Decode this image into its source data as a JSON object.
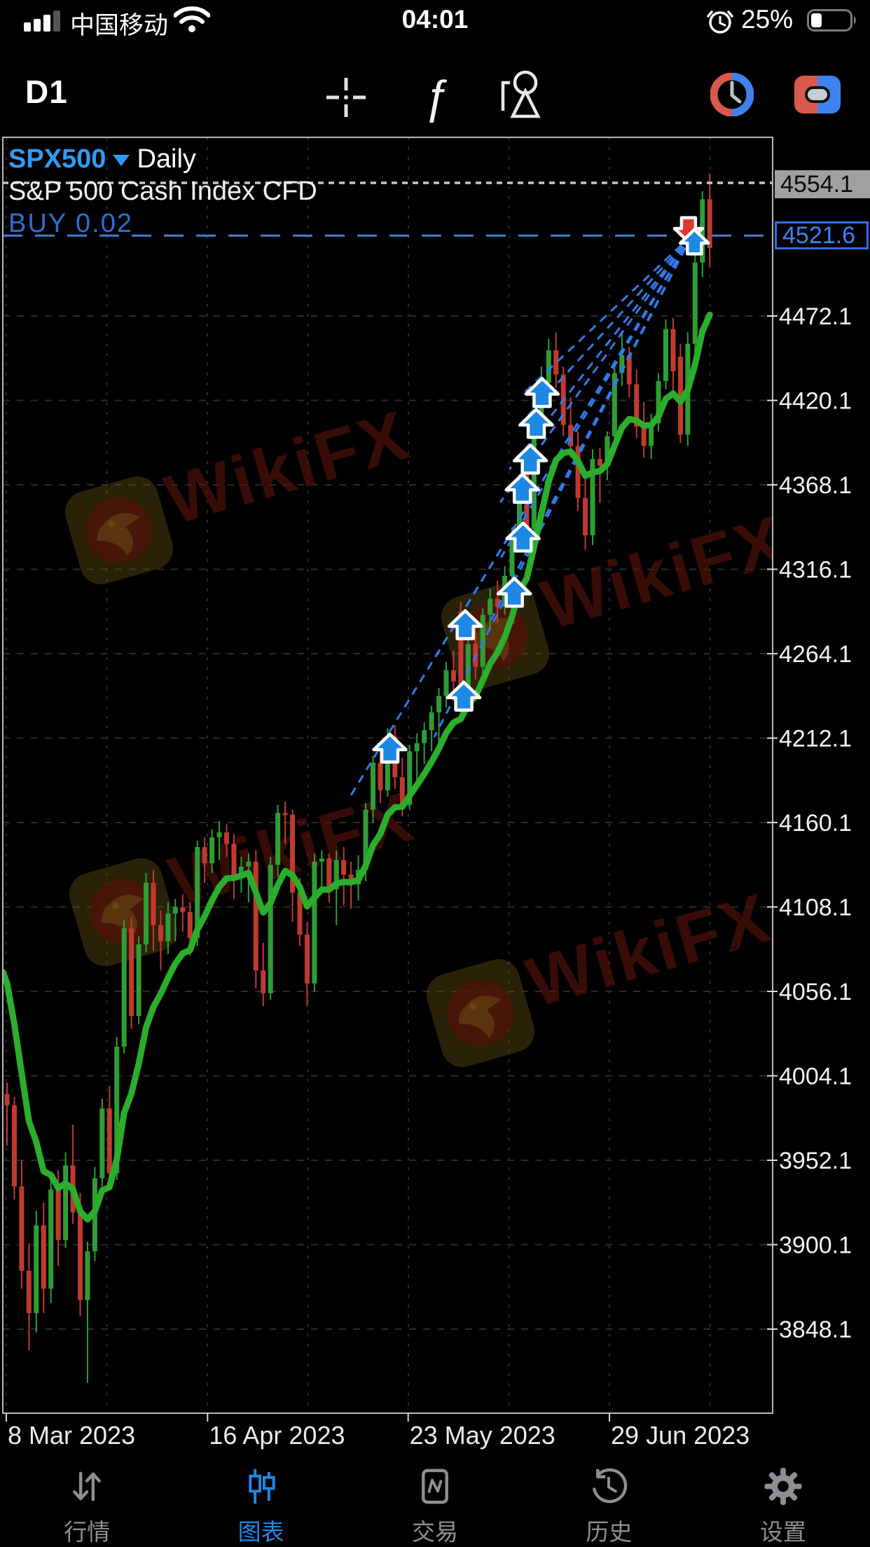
{
  "status_bar": {
    "carrier": "中国移动",
    "time": "04:01",
    "battery_percent": "25%"
  },
  "toolbar": {
    "timeframe": "D1"
  },
  "header": {
    "symbol": "SPX500",
    "timeframe_label": "Daily",
    "description": "S&P 500 Cash Index CFD",
    "position_label": "BUY 0.02"
  },
  "badges": {
    "ask_label": "4554.1",
    "position_price_label": "4521.6"
  },
  "axis": {
    "y_labels": [
      "4472.1",
      "4420.1",
      "4368.1",
      "4316.1",
      "4264.1",
      "4212.1",
      "4160.1",
      "4108.1",
      "4056.1",
      "4004.1",
      "3952.1",
      "3900.1",
      "3848.1"
    ],
    "x_labels": [
      "8 Mar 2023",
      "16 Apr 2023",
      "23 May 2023",
      "29 Jun 2023"
    ]
  },
  "watermark": {
    "text": "WikiFX"
  },
  "nav": {
    "items": [
      {
        "label": "行情",
        "active": false
      },
      {
        "label": "图表",
        "active": true
      },
      {
        "label": "交易",
        "active": false
      },
      {
        "label": "历史",
        "active": false
      },
      {
        "label": "设置",
        "active": false
      }
    ]
  },
  "colors": {
    "accent_blue": "#1e88e5",
    "symbol_blue": "#2f9bf6",
    "buy_text_blue": "#2b6fd6",
    "candle_up": "#2e9e33",
    "candle_down": "#c13a2e",
    "ma_green": "#2bae2b",
    "trendline_blue": "#2f7be8",
    "position_line_blue": "#3f7fd6",
    "ask_line_gray": "#c8c8c8",
    "grid_gray": "#2a2a2a",
    "nav_gray": "#8e8e93"
  },
  "chart_data": {
    "type": "candlestick",
    "symbol": "SPX500",
    "period": "Daily",
    "title": "S&P 500 Cash Index CFD",
    "ylim": [
      3796,
      4582
    ],
    "y_ticks": [
      4472.1,
      4420.1,
      4368.1,
      4316.1,
      4264.1,
      4212.1,
      4160.1,
      4108.1,
      4056.1,
      4004.1,
      3952.1,
      3900.1,
      3848.1
    ],
    "x_ticks": [
      {
        "bar": -0.1,
        "label": "8 Mar 2023"
      },
      {
        "bar": 27.4,
        "label": "16 Apr 2023"
      },
      {
        "bar": 54.8,
        "label": "23 May 2023"
      },
      {
        "bar": 82.3,
        "label": "29 Jun 2023"
      }
    ],
    "price_levels": {
      "ask": 4554.1,
      "position_buy": 4521.6
    },
    "ma": {
      "kind": "EMA",
      "period": 9,
      "seed": 4080
    },
    "candles_ohlc": [
      [
        3993,
        4000,
        3961,
        3986
      ],
      [
        3986,
        3991,
        3928,
        3936
      ],
      [
        3936,
        3952,
        3873,
        3884
      ],
      [
        3884,
        3901,
        3835,
        3858
      ],
      [
        3858,
        3921,
        3846,
        3912
      ],
      [
        3912,
        3926,
        3858,
        3873
      ],
      [
        3873,
        3941,
        3864,
        3934
      ],
      [
        3934,
        3946,
        3887,
        3903
      ],
      [
        3903,
        3957,
        3898,
        3949
      ],
      [
        3949,
        3974,
        3913,
        3920
      ],
      [
        3920,
        3932,
        3856,
        3866
      ],
      [
        3866,
        3902,
        3815,
        3896
      ],
      [
        3896,
        3948,
        3890,
        3941
      ],
      [
        3941,
        3990,
        3935,
        3984
      ],
      [
        3984,
        3998,
        3938,
        3944
      ],
      [
        3944,
        4028,
        3940,
        4022
      ],
      [
        4022,
        4100,
        4018,
        4095
      ],
      [
        4095,
        4102,
        4033,
        4041
      ],
      [
        4041,
        4090,
        4036,
        4085
      ],
      [
        4085,
        4129,
        4080,
        4123
      ],
      [
        4123,
        4131,
        4081,
        4097
      ],
      [
        4097,
        4106,
        4069,
        4087
      ],
      [
        4087,
        4111,
        4079,
        4104
      ],
      [
        4104,
        4113,
        4087,
        4108
      ],
      [
        4108,
        4116,
        4093,
        4105
      ],
      [
        4105,
        4111,
        4078,
        4089
      ],
      [
        4089,
        4149,
        4084,
        4145
      ],
      [
        4145,
        4151,
        4123,
        4135
      ],
      [
        4135,
        4156,
        4129,
        4151
      ],
      [
        4151,
        4161,
        4137,
        4154
      ],
      [
        4154,
        4159,
        4139,
        4147
      ],
      [
        4147,
        4153,
        4113,
        4127
      ],
      [
        4127,
        4139,
        4117,
        4133
      ],
      [
        4133,
        4141,
        4111,
        4136
      ],
      [
        4136,
        4143,
        4058,
        4069
      ],
      [
        4069,
        4086,
        4047,
        4055
      ],
      [
        4055,
        4139,
        4051,
        4134
      ],
      [
        4134,
        4171,
        4127,
        4166
      ],
      [
        4166,
        4173,
        4147,
        4165
      ],
      [
        4165,
        4168,
        4099,
        4117
      ],
      [
        4117,
        4126,
        4084,
        4091
      ],
      [
        4091,
        4099,
        4047,
        4061
      ],
      [
        4061,
        4141,
        4056,
        4136
      ],
      [
        4136,
        4143,
        4119,
        4138
      ],
      [
        4138,
        4141,
        4111,
        4119
      ],
      [
        4119,
        4143,
        4097,
        4137
      ],
      [
        4137,
        4145,
        4109,
        4128
      ],
      [
        4128,
        4136,
        4107,
        4122
      ],
      [
        4122,
        4140,
        4112,
        4131
      ],
      [
        4131,
        4172,
        4124,
        4168
      ],
      [
        4168,
        4201,
        4160,
        4197
      ],
      [
        4197,
        4204,
        4172,
        4180
      ],
      [
        4180,
        4218,
        4176,
        4213
      ],
      [
        4213,
        4220,
        4181,
        4188
      ],
      [
        4188,
        4200,
        4164,
        4171
      ],
      [
        4171,
        4208,
        4168,
        4204
      ],
      [
        4204,
        4215,
        4186,
        4209
      ],
      [
        4209,
        4222,
        4196,
        4217
      ],
      [
        4217,
        4232,
        4204,
        4228
      ],
      [
        4228,
        4243,
        4207,
        4238
      ],
      [
        4238,
        4259,
        4231,
        4254
      ],
      [
        4254,
        4266,
        4238,
        4247
      ],
      [
        4290,
        4296,
        4224,
        4233
      ],
      [
        4233,
        4275,
        4228,
        4270
      ],
      [
        4270,
        4281,
        4248,
        4256
      ],
      [
        4256,
        4292,
        4251,
        4288
      ],
      [
        4288,
        4304,
        4279,
        4298
      ],
      [
        4298,
        4309,
        4283,
        4293
      ],
      [
        4293,
        4318,
        4288,
        4312
      ],
      [
        4312,
        4342,
        4306,
        4338
      ],
      [
        4338,
        4371,
        4331,
        4366
      ],
      [
        4383,
        4389,
        4332,
        4341
      ],
      [
        4341,
        4412,
        4336,
        4407
      ],
      [
        4407,
        4441,
        4399,
        4431
      ],
      [
        4431,
        4458,
        4422,
        4451
      ],
      [
        4451,
        4462,
        4428,
        4436
      ],
      [
        4436,
        4441,
        4398,
        4405
      ],
      [
        4405,
        4422,
        4385,
        4392
      ],
      [
        4392,
        4401,
        4352,
        4360
      ],
      [
        4360,
        4372,
        4328,
        4337
      ],
      [
        4337,
        4390,
        4331,
        4384
      ],
      [
        4384,
        4391,
        4357,
        4380
      ],
      [
        4380,
        4401,
        4371,
        4398
      ],
      [
        4398,
        4442,
        4393,
        4437
      ],
      [
        4437,
        4461,
        4429,
        4448
      ],
      [
        4448,
        4453,
        4422,
        4430
      ],
      [
        4430,
        4439,
        4397,
        4404
      ],
      [
        4404,
        4419,
        4385,
        4392
      ],
      [
        4392,
        4412,
        4384,
        4406
      ],
      [
        4406,
        4437,
        4401,
        4432
      ],
      [
        4432,
        4470,
        4427,
        4464
      ],
      [
        4464,
        4471,
        4426,
        4438
      ],
      [
        4447,
        4455,
        4394,
        4399
      ],
      [
        4399,
        4462,
        4392,
        4455
      ],
      [
        4455,
        4511,
        4450,
        4505
      ],
      [
        4505,
        4549,
        4496,
        4544
      ],
      [
        4544,
        4560,
        4502,
        4514
      ]
    ],
    "buy_arrows": [
      {
        "bar": 52.3,
        "price": 4205
      },
      {
        "bar": 62.4,
        "price": 4237
      },
      {
        "bar": 62.6,
        "price": 4281
      },
      {
        "bar": 69.3,
        "price": 4301
      },
      {
        "bar": 70.5,
        "price": 4335
      },
      {
        "bar": 70.4,
        "price": 4365
      },
      {
        "bar": 71.5,
        "price": 4383
      },
      {
        "bar": 72.3,
        "price": 4405
      },
      {
        "bar": 73.1,
        "price": 4424
      }
    ],
    "close_markers": {
      "sell": {
        "bar": 93.1,
        "price": 4526
      },
      "buy": {
        "bar": 93.9,
        "price": 4517
      }
    },
    "trend_target": {
      "bar": 93.6,
      "price": 4522
    },
    "legend": "blue dashed rays connect each buy arrow to the position close point"
  }
}
